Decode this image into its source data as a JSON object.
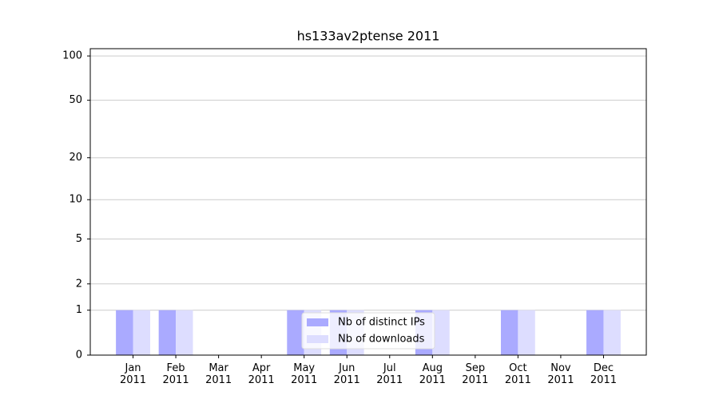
{
  "chart_data": {
    "type": "bar",
    "title": "hs133av2ptense 2011",
    "categories": [
      "Jan\n2011",
      "Feb\n2011",
      "Mar\n2011",
      "Apr\n2011",
      "May\n2011",
      "Jun\n2011",
      "Jul\n2011",
      "Aug\n2011",
      "Sep\n2011",
      "Oct\n2011",
      "Nov\n2011",
      "Dec\n2011"
    ],
    "series": [
      {
        "name": "Nb of distinct IPs",
        "color": "#aaaaff",
        "values": [
          1,
          1,
          0,
          0,
          1,
          1,
          0,
          1,
          0,
          1,
          0,
          1
        ]
      },
      {
        "name": "Nb of downloads",
        "color": "#ddddff",
        "values": [
          1,
          1,
          0,
          0,
          1,
          1,
          0,
          1,
          0,
          1,
          0,
          1
        ]
      }
    ],
    "yscale": "log1p",
    "ylim": [
      0,
      112
    ],
    "yticks": [
      0,
      1,
      2,
      5,
      10,
      20,
      50,
      100
    ],
    "grid": true,
    "legend": "lower center"
  }
}
